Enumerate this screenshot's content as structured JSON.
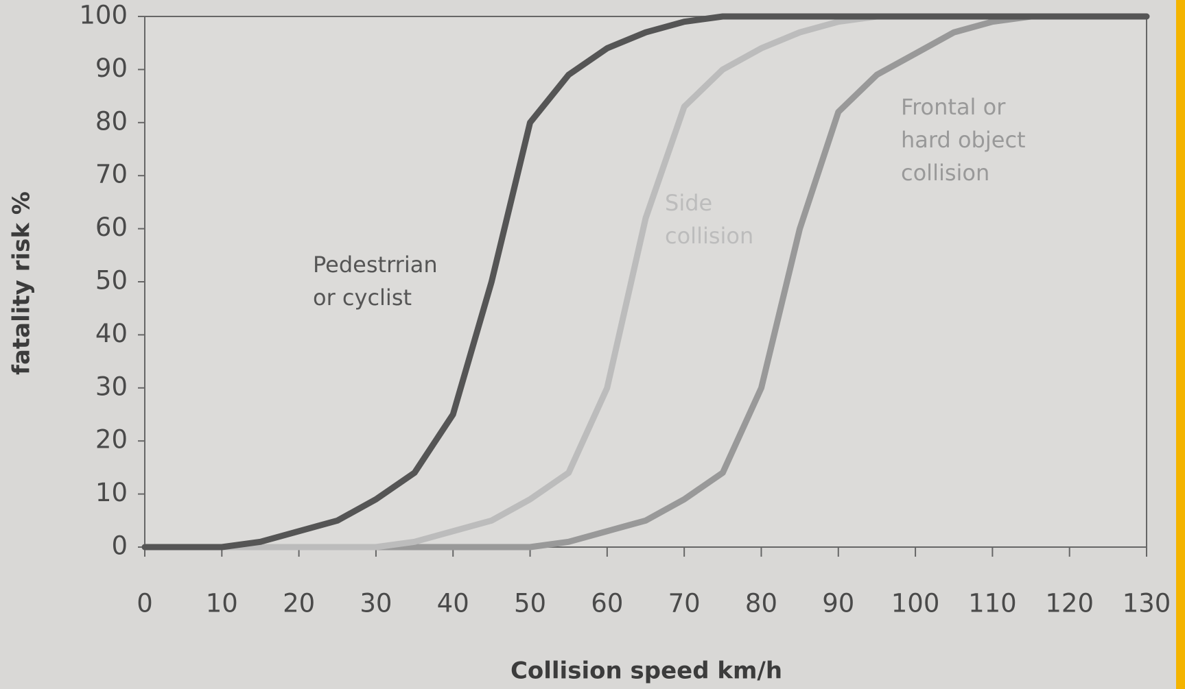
{
  "chart_data": {
    "type": "line",
    "xlabel": "Collision speed km/h",
    "ylabel": "fatality risk %",
    "x": [
      0,
      5,
      10,
      15,
      20,
      25,
      30,
      35,
      40,
      45,
      50,
      55,
      60,
      65,
      70,
      75,
      80,
      85,
      90,
      95,
      100,
      105,
      110,
      115,
      120,
      125,
      130
    ],
    "series": [
      {
        "name": "Pedestrrian or cyclist",
        "color": "#555555",
        "values": [
          0,
          0,
          0,
          1,
          3,
          5,
          9,
          14,
          25,
          50,
          80,
          89,
          94,
          97,
          99,
          100,
          100,
          100,
          100,
          100,
          100,
          100,
          100,
          100,
          100,
          100,
          100
        ]
      },
      {
        "name": "Side collision",
        "color": "#bcbcbc",
        "values": [
          0,
          0,
          0,
          0,
          0,
          0,
          0,
          1,
          3,
          5,
          9,
          14,
          30,
          62,
          83,
          90,
          94,
          97,
          99,
          100,
          100,
          100,
          100,
          100,
          100,
          100,
          100
        ]
      },
      {
        "name": "Frontal or hard object collision",
        "color": "#999999",
        "values": [
          0,
          0,
          0,
          0,
          0,
          0,
          0,
          0,
          0,
          0,
          0,
          1,
          3,
          5,
          9,
          14,
          30,
          60,
          82,
          89,
          93,
          97,
          99,
          100,
          100,
          100,
          100
        ]
      }
    ],
    "xlim": [
      0,
      130
    ],
    "ylim": [
      0,
      100
    ],
    "xticks": [
      0,
      10,
      20,
      30,
      40,
      50,
      60,
      70,
      80,
      90,
      100,
      110,
      120,
      130
    ],
    "yticks": [
      0,
      10,
      20,
      30,
      40,
      50,
      60,
      70,
      80,
      90,
      100
    ],
    "grid": false
  }
}
